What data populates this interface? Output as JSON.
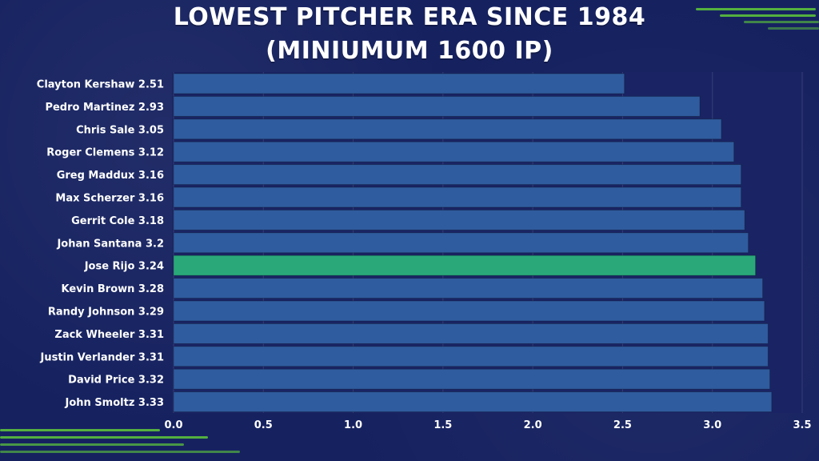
{
  "chart_data": {
    "type": "bar",
    "orientation": "horizontal",
    "title": "LOWEST PITCHER ERA SINCE 1984",
    "subtitle": "(MINIUMUM  1600 IP)",
    "categories": [
      "Clayton Kershaw 2.51",
      "Pedro Martinez 2.93",
      "Chris Sale 3.05",
      "Roger Clemens 3.12",
      "Greg Maddux 3.16",
      "Max Scherzer 3.16",
      "Gerrit Cole 3.18",
      "Johan Santana 3.2",
      "Jose Rijo 3.24",
      "Kevin Brown 3.28",
      "Randy Johnson 3.29",
      "Zack Wheeler 3.31",
      "Justin Verlander 3.31",
      "David Price 3.32",
      "John Smoltz 3.33"
    ],
    "values": [
      2.51,
      2.93,
      3.05,
      3.12,
      3.16,
      3.16,
      3.18,
      3.2,
      3.24,
      3.28,
      3.29,
      3.31,
      3.31,
      3.32,
      3.33
    ],
    "highlight": "Jose Rijo 3.24",
    "xlim": [
      0,
      3.5
    ],
    "xticks": [
      "0.0",
      "0.5",
      "1.0",
      "1.5",
      "2.0",
      "2.5",
      "3.0",
      "3.5"
    ],
    "xtick_values": [
      0,
      0.5,
      1.0,
      1.5,
      2.0,
      2.5,
      3.0,
      3.5
    ],
    "grid": true,
    "colors": {
      "bar": "#2f5c9e",
      "highlight_bar": "#2aa87a",
      "plot_bg": "#1a2464",
      "accent": "#5fc93a"
    }
  }
}
